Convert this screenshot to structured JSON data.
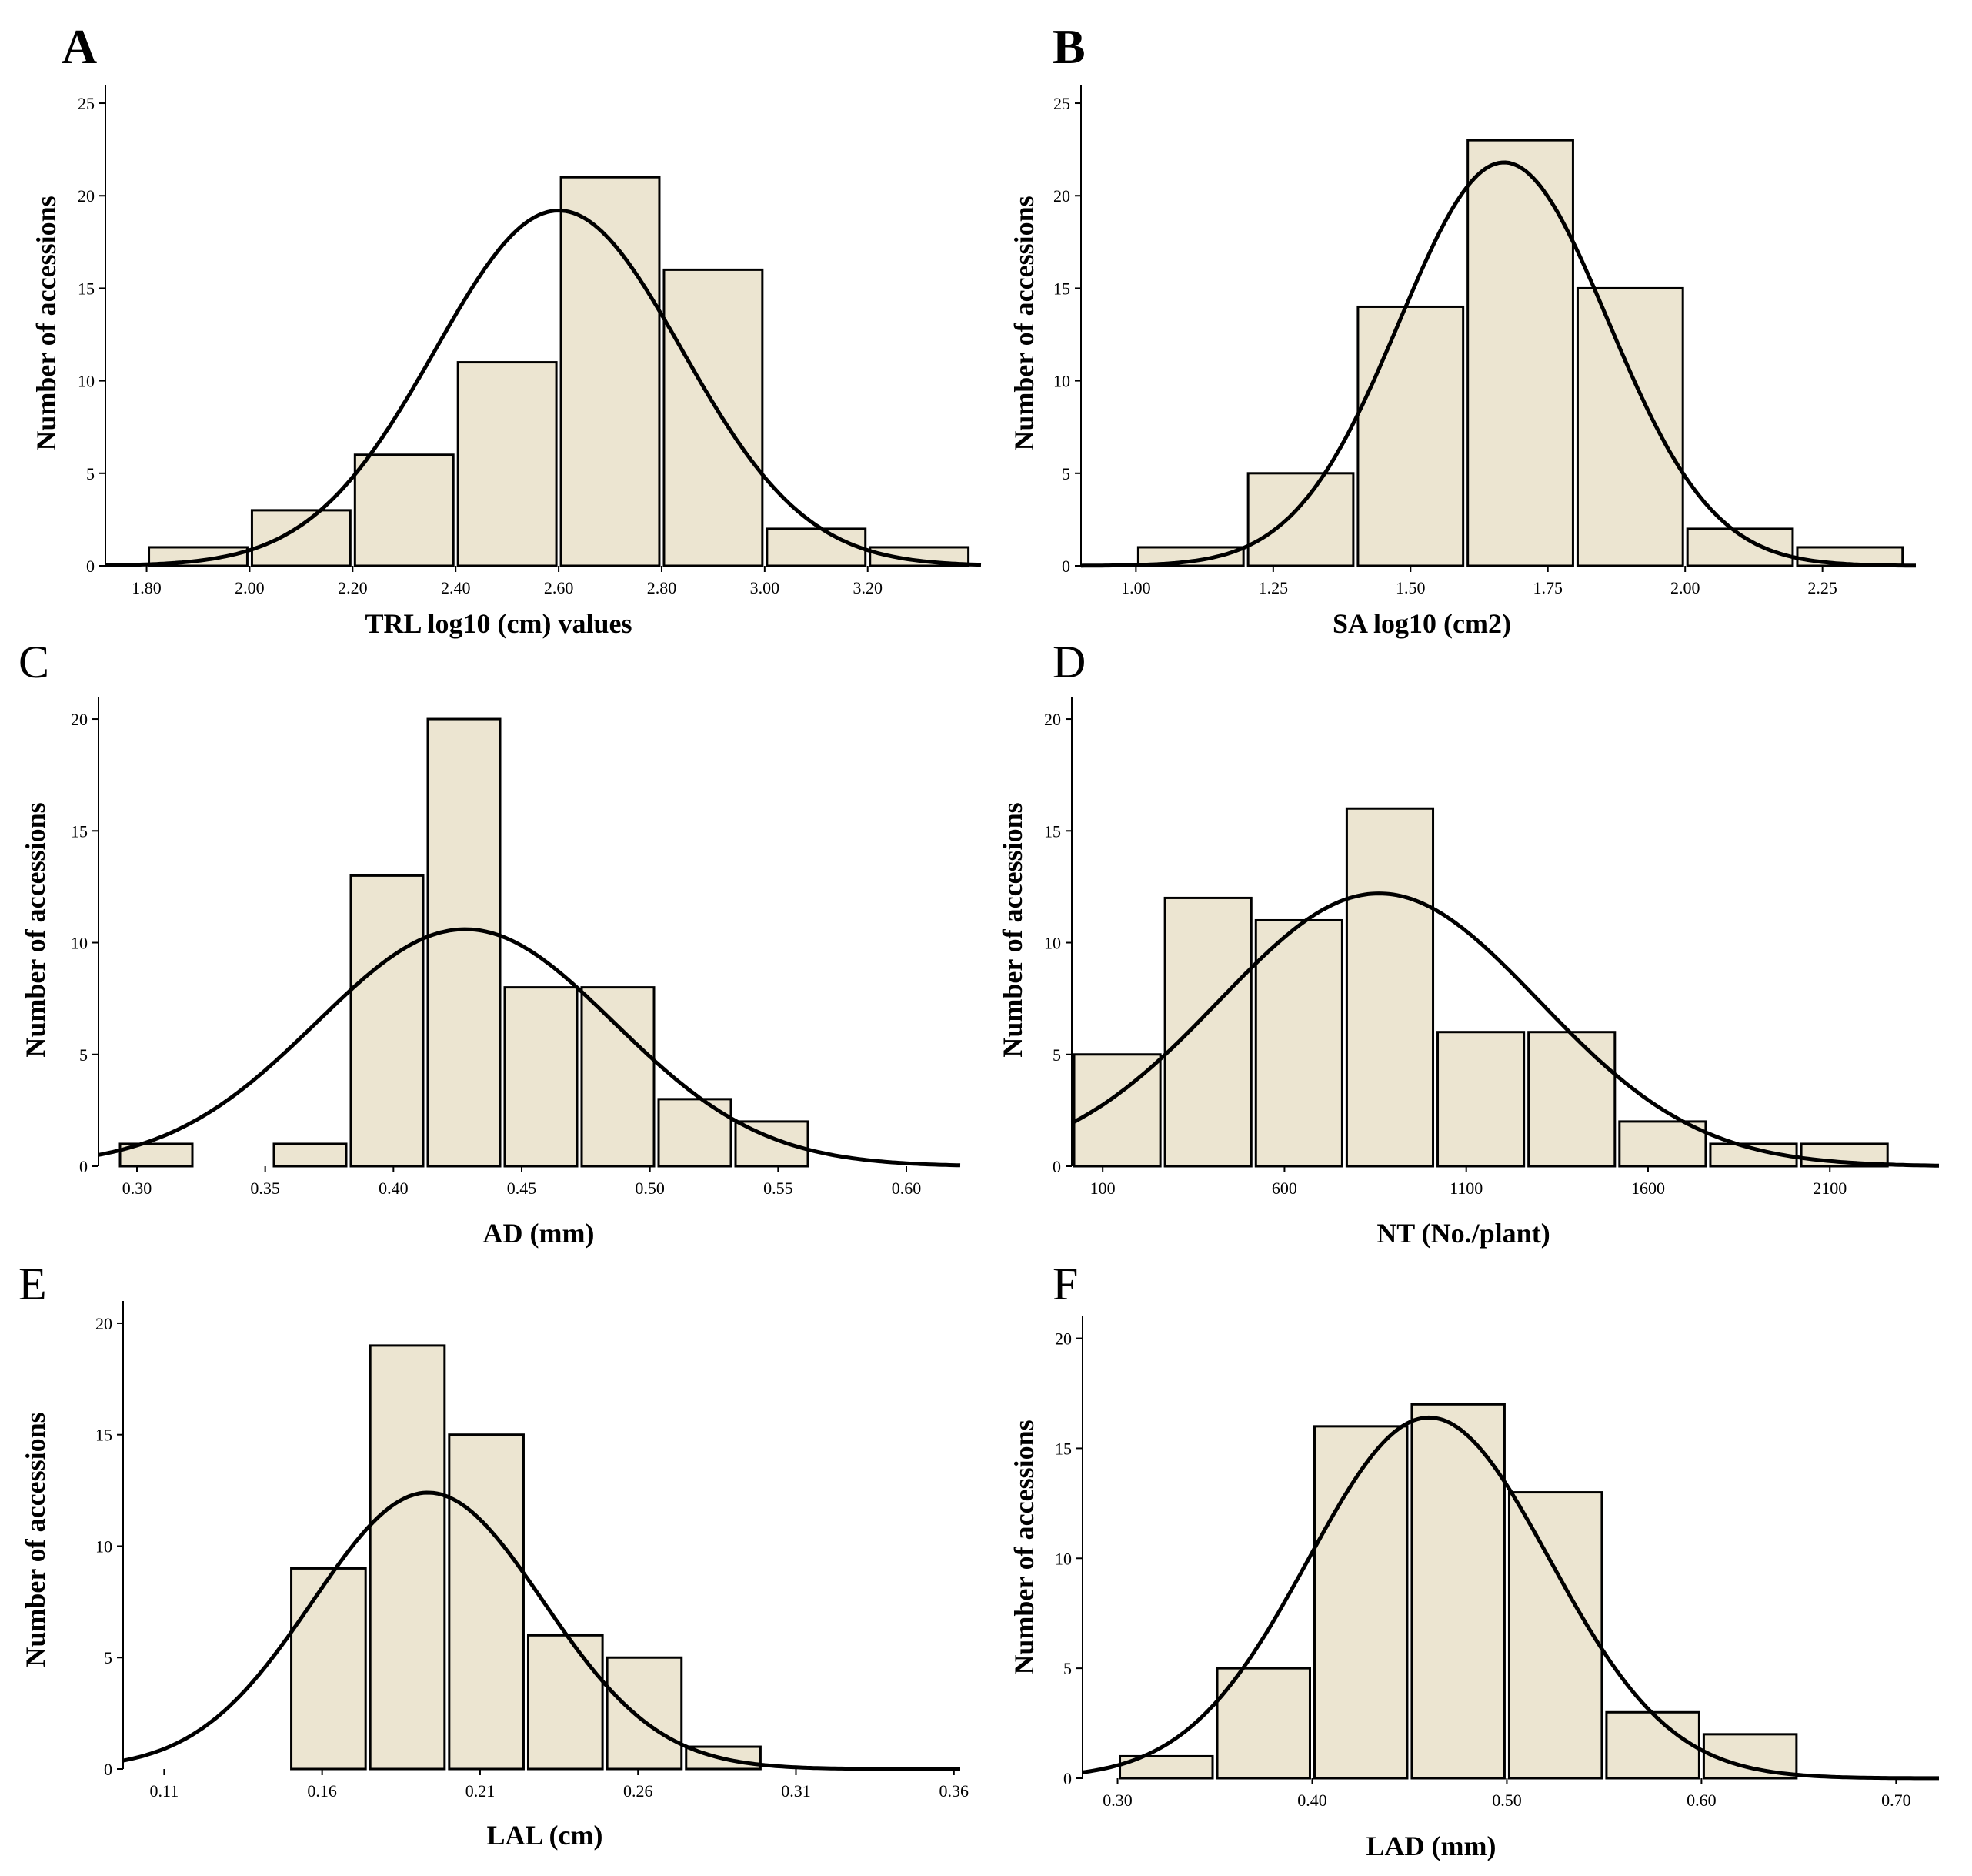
{
  "chart_data": [
    {
      "panel": "A",
      "type": "bar",
      "title": "",
      "xlabel": "TRL log10 (cm) values",
      "ylabel": "Number of accessions",
      "xlim": [
        1.72,
        3.42
      ],
      "ylim": [
        0,
        26
      ],
      "xticks": [
        "1.80",
        "2.00",
        "2.20",
        "2.40",
        "2.60",
        "2.80",
        "3.00",
        "3.20"
      ],
      "yticks": [
        "0",
        "5",
        "10",
        "15",
        "20",
        "25"
      ],
      "bin_edges": [
        1.8,
        2.0,
        2.2,
        2.4,
        2.6,
        2.8,
        3.0,
        3.2,
        3.4
      ],
      "values": [
        1,
        3,
        6,
        11,
        21,
        16,
        2,
        1
      ],
      "normal_curve": {
        "mean": 2.6,
        "sd": 0.24,
        "peak": 19.2
      }
    },
    {
      "panel": "B",
      "type": "bar",
      "title": "",
      "xlabel": "SA log10 (cm2)",
      "ylabel": "Number of accessions",
      "xlim": [
        0.9,
        2.42
      ],
      "ylim": [
        0,
        26
      ],
      "xticks": [
        "1.00",
        "1.25",
        "1.50",
        "1.75",
        "2.00",
        "2.25"
      ],
      "yticks": [
        "0",
        "5",
        "10",
        "15",
        "20",
        "25"
      ],
      "bin_edges": [
        1.0,
        1.2,
        1.4,
        1.6,
        1.8,
        2.0,
        2.2,
        2.4
      ],
      "values": [
        1,
        5,
        14,
        23,
        15,
        2,
        1
      ],
      "normal_curve": {
        "mean": 1.67,
        "sd": 0.19,
        "peak": 21.8
      }
    },
    {
      "panel": "C",
      "type": "bar",
      "title": "",
      "xlabel": "AD (mm)",
      "ylabel": "Number of accessions",
      "xlim": [
        0.285,
        0.621
      ],
      "ylim": [
        0,
        21
      ],
      "xticks": [
        "0.30",
        "0.35",
        "0.40",
        "0.45",
        "0.50",
        "0.55",
        "0.60"
      ],
      "yticks": [
        "0",
        "5",
        "10",
        "15",
        "20"
      ],
      "bin_edges": [
        0.2925,
        0.3225,
        0.3525,
        0.3825,
        0.4125,
        0.4425,
        0.4725,
        0.5025,
        0.5325,
        0.5625
      ],
      "values": [
        1,
        0,
        1,
        13,
        20,
        8,
        8,
        3,
        2
      ],
      "normal_curve": {
        "mean": 0.428,
        "sd": 0.058,
        "peak": 10.6
      }
    },
    {
      "panel": "D",
      "type": "bar",
      "title": "",
      "xlabel": "NT (No./plant)",
      "ylabel": "Number of accessions",
      "xlim": [
        15,
        2400
      ],
      "ylim": [
        0,
        21
      ],
      "xticks": [
        "100",
        "600",
        "1100",
        "1600",
        "2100"
      ],
      "yticks": [
        "0",
        "5",
        "10",
        "15",
        "20"
      ],
      "bin_edges": [
        15,
        265,
        515,
        765,
        1015,
        1265,
        1515,
        1765,
        2015,
        2265
      ],
      "values": [
        5,
        12,
        11,
        16,
        6,
        6,
        2,
        1,
        1
      ],
      "normal_curve": {
        "mean": 860,
        "sd": 440,
        "peak": 12.2
      }
    },
    {
      "panel": "E",
      "type": "bar",
      "title": "",
      "xlabel": "LAL (cm)",
      "ylabel": "Number of accessions",
      "xlim": [
        0.097,
        0.362
      ],
      "ylim": [
        0,
        21
      ],
      "xticks": [
        "0.11",
        "0.16",
        "0.21",
        "0.26",
        "0.31",
        "0.36"
      ],
      "yticks": [
        "0",
        "5",
        "10",
        "15",
        "20"
      ],
      "bin_edges": [
        0.1495,
        0.1745,
        0.1995,
        0.2245,
        0.2495,
        0.2745,
        0.2995
      ],
      "values": [
        9,
        19,
        15,
        6,
        5,
        1
      ],
      "normal_curve": {
        "mean": 0.1935,
        "sd": 0.0365,
        "peak": 12.4
      }
    },
    {
      "panel": "F",
      "type": "bar",
      "title": "",
      "xlabel": "LAD (mm)",
      "ylabel": "Number of accessions",
      "xlim": [
        0.282,
        0.722
      ],
      "ylim": [
        0,
        21
      ],
      "xticks": [
        "0.30",
        "0.40",
        "0.50",
        "0.60",
        "0.70"
      ],
      "yticks": [
        "0",
        "5",
        "10",
        "15",
        "20"
      ],
      "bin_edges": [
        0.3,
        0.35,
        0.4,
        0.45,
        0.5,
        0.55,
        0.6,
        0.65
      ],
      "values": [
        1,
        5,
        16,
        17,
        13,
        3,
        2
      ],
      "normal_curve": {
        "mean": 0.46,
        "sd": 0.062,
        "peak": 16.4
      }
    }
  ]
}
